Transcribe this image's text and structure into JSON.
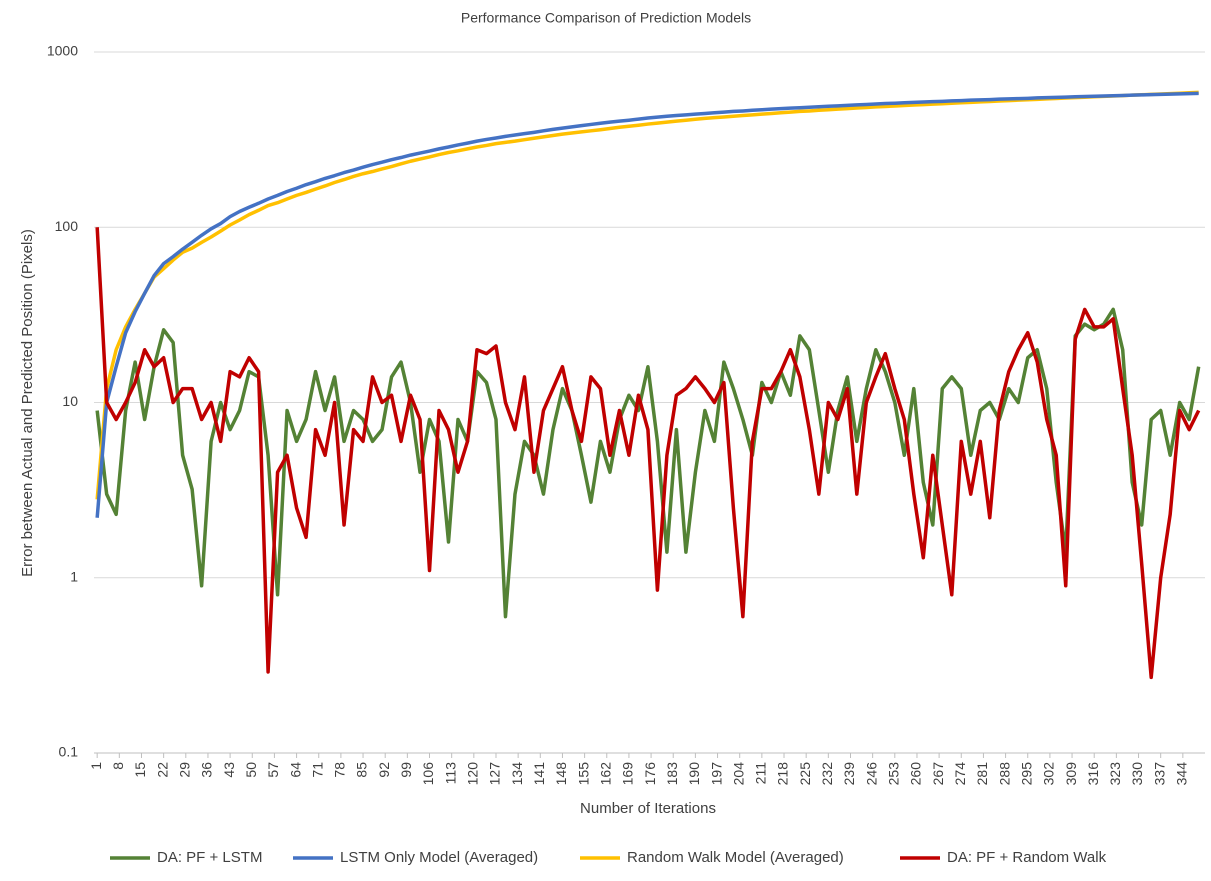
{
  "chart_data": {
    "type": "line",
    "title": "Performance Comparison of Prediction Models",
    "x_label": "Number of Iterations",
    "y_label": "Error between Actual and Predicted Position (Pixels)",
    "log_y": true,
    "grid": true,
    "legend_position": "bottom",
    "xlim": [
      0,
      351
    ],
    "ylim": [
      0.1,
      1000
    ],
    "yticks": [
      0.1,
      1,
      10,
      100,
      1000
    ],
    "xticks": [
      1,
      8,
      15,
      22,
      29,
      36,
      43,
      50,
      57,
      64,
      71,
      78,
      85,
      92,
      99,
      106,
      113,
      120,
      127,
      134,
      141,
      148,
      155,
      162,
      169,
      176,
      183,
      190,
      197,
      204,
      211,
      218,
      225,
      232,
      239,
      246,
      253,
      260,
      267,
      274,
      281,
      288,
      295,
      302,
      309,
      316,
      323,
      330,
      337,
      344
    ],
    "x": [
      1,
      4,
      7,
      10,
      13,
      16,
      19,
      22,
      25,
      28,
      31,
      34,
      37,
      40,
      43,
      46,
      49,
      52,
      55,
      58,
      61,
      64,
      67,
      70,
      73,
      76,
      79,
      82,
      85,
      88,
      91,
      94,
      97,
      100,
      103,
      106,
      109,
      112,
      115,
      118,
      121,
      124,
      127,
      130,
      133,
      136,
      139,
      142,
      145,
      148,
      151,
      154,
      157,
      160,
      163,
      166,
      169,
      172,
      175,
      178,
      181,
      184,
      187,
      190,
      193,
      196,
      199,
      202,
      205,
      208,
      211,
      214,
      217,
      220,
      223,
      226,
      229,
      232,
      235,
      238,
      241,
      244,
      247,
      250,
      253,
      256,
      259,
      262,
      265,
      268,
      271,
      274,
      277,
      280,
      283,
      286,
      289,
      292,
      295,
      298,
      301,
      304,
      307,
      310,
      313,
      316,
      319,
      322,
      325,
      328,
      331,
      334,
      337,
      340,
      343,
      346,
      349
    ],
    "series": [
      {
        "name": "DA: PF + LSTM",
        "color": "#548235",
        "values": [
          9,
          3,
          2.3,
          9,
          17,
          8,
          16,
          26,
          22,
          5,
          3.2,
          0.9,
          6,
          10,
          7,
          9,
          15,
          14,
          5,
          0.8,
          9,
          6,
          8,
          15,
          9,
          14,
          6,
          9,
          8,
          6,
          7,
          14,
          17,
          10,
          4,
          8,
          6,
          1.6,
          8,
          6,
          15,
          13,
          8,
          0.6,
          3,
          6,
          5,
          3,
          7,
          12,
          9,
          5,
          2.7,
          6,
          4,
          8,
          11,
          9,
          16,
          6,
          1.4,
          7,
          1.4,
          4,
          9,
          6,
          17,
          12,
          8,
          5,
          13,
          10,
          15,
          11,
          24,
          20,
          9,
          4,
          9,
          14,
          6,
          12,
          20,
          15,
          10,
          5,
          12,
          3.5,
          2,
          12,
          14,
          12,
          5,
          9,
          10,
          8,
          12,
          10,
          18,
          20,
          12,
          3.5,
          1.4,
          24,
          28,
          26,
          28,
          34,
          20,
          3.5,
          2,
          8,
          9,
          5,
          10,
          8,
          16
        ]
      },
      {
        "name": "LSTM Only Model (Averaged)",
        "color": "#4472c4",
        "values": [
          2.2,
          10,
          16,
          25,
          33,
          42,
          53,
          62,
          68,
          75,
          82,
          90,
          98,
          105,
          115,
          123,
          130,
          137,
          145,
          152,
          160,
          167,
          175,
          182,
          190,
          197,
          205,
          212,
          220,
          228,
          235,
          243,
          250,
          258,
          265,
          272,
          280,
          287,
          295,
          302,
          310,
          317,
          323,
          330,
          336,
          342,
          348,
          355,
          362,
          368,
          374,
          380,
          386,
          392,
          398,
          403,
          408,
          414,
          420,
          425,
          430,
          434,
          438,
          442,
          446,
          450,
          454,
          458,
          461,
          465,
          468,
          472,
          475,
          478,
          481,
          484,
          487,
          490,
          493,
          496,
          499,
          502,
          505,
          508,
          510,
          513,
          516,
          518,
          521,
          523,
          526,
          528,
          531,
          533,
          535,
          538,
          540,
          542,
          544,
          547,
          549,
          551,
          553,
          555,
          557,
          559,
          561,
          563,
          565,
          567,
          569,
          571,
          573,
          575,
          577,
          579,
          581
        ]
      },
      {
        "name": "Random Walk Model (Averaged)",
        "color": "#ffc000",
        "values": [
          2.8,
          12,
          20,
          27,
          34,
          42,
          52,
          58,
          65,
          72,
          76,
          82,
          88,
          95,
          103,
          110,
          118,
          125,
          133,
          138,
          145,
          152,
          158,
          165,
          172,
          180,
          187,
          195,
          202,
          208,
          215,
          222,
          230,
          238,
          245,
          252,
          260,
          267,
          273,
          280,
          287,
          293,
          300,
          305,
          310,
          316,
          322,
          328,
          334,
          340,
          345,
          350,
          355,
          360,
          366,
          372,
          377,
          382,
          388,
          393,
          398,
          403,
          408,
          413,
          418,
          422,
          426,
          430,
          434,
          438,
          442,
          446,
          450,
          454,
          458,
          461,
          465,
          468,
          472,
          475,
          479,
          482,
          486,
          489,
          492,
          495,
          498,
          501,
          504,
          507,
          510,
          513,
          516,
          519,
          522,
          525,
          528,
          531,
          534,
          537,
          540,
          543,
          546,
          549,
          552,
          555,
          558,
          561,
          564,
          567,
          570,
          573,
          576,
          579,
          582,
          585,
          588
        ]
      },
      {
        "name": "DA: PF + Random Walk",
        "color": "#c00000",
        "values": [
          100,
          10,
          8,
          10,
          13,
          20,
          16,
          18,
          10,
          12,
          12,
          8,
          10,
          6,
          15,
          14,
          18,
          15,
          0.29,
          4,
          5,
          2.5,
          1.7,
          7,
          5,
          10,
          2,
          7,
          6,
          14,
          10,
          11,
          6,
          11,
          8,
          1.1,
          9,
          7,
          4,
          6,
          20,
          19,
          21,
          10,
          7,
          14,
          4,
          9,
          12,
          16,
          9,
          6,
          14,
          12,
          5,
          9,
          5,
          11,
          7,
          0.85,
          5,
          11,
          12,
          14,
          12,
          10,
          13,
          2.5,
          0.6,
          6,
          12,
          12,
          15,
          20,
          14,
          7,
          3,
          10,
          8,
          12,
          3,
          10,
          14,
          19,
          12,
          8,
          3,
          1.3,
          5,
          2,
          0.8,
          6,
          3,
          6,
          2.2,
          9,
          15,
          20,
          25,
          17,
          8,
          5,
          0.9,
          23,
          34,
          27,
          27,
          30,
          12,
          5,
          1.2,
          0.27,
          1,
          2.3,
          9,
          7,
          9
        ]
      }
    ]
  }
}
